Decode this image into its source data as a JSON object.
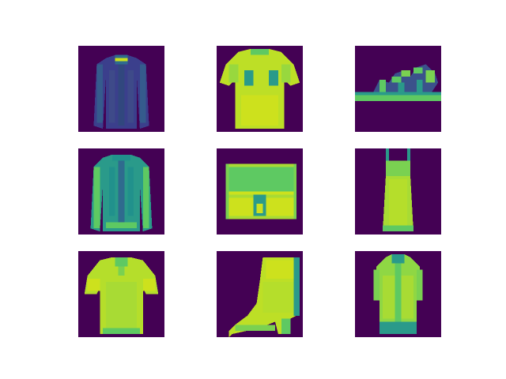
{
  "figure": {
    "background": "#ffffff",
    "grid": {
      "rows": 3,
      "cols": 3
    },
    "colormap": "viridis",
    "colormap_stops": [
      "#440154",
      "#3b528b",
      "#21918c",
      "#5ec962",
      "#fde725"
    ],
    "tiles": [
      {
        "row": 0,
        "col": 0,
        "item": "shirt",
        "dominant_color": "#3b3f8c"
      },
      {
        "row": 0,
        "col": 1,
        "item": "t-shirt",
        "dominant_color": "#cde11d"
      },
      {
        "row": 0,
        "col": 2,
        "item": "sandal",
        "dominant_color": "#5ec962"
      },
      {
        "row": 1,
        "col": 0,
        "item": "pullover",
        "dominant_color": "#2a9a8a"
      },
      {
        "row": 1,
        "col": 1,
        "item": "bag",
        "dominant_color": "#b5de2b"
      },
      {
        "row": 1,
        "col": 2,
        "item": "dress",
        "dominant_color": "#a8db34"
      },
      {
        "row": 2,
        "col": 0,
        "item": "t-shirt",
        "dominant_color": "#c2df23"
      },
      {
        "row": 2,
        "col": 1,
        "item": "ankle-boot",
        "dominant_color": "#c6e021"
      },
      {
        "row": 2,
        "col": 2,
        "item": "coat",
        "dominant_color": "#8fd744"
      }
    ]
  }
}
